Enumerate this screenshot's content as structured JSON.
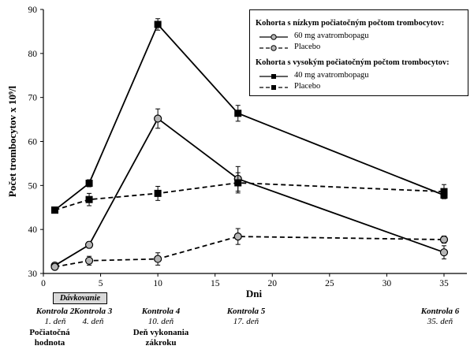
{
  "chart_data": {
    "type": "line",
    "ylabel": "Počet trombocytov x 10⁹/l",
    "xlabel": "Dni",
    "xlim": [
      0,
      37
    ],
    "ylim": [
      30,
      90
    ],
    "xticks": [
      0,
      5,
      10,
      15,
      20,
      25,
      30,
      35
    ],
    "yticks": [
      30,
      40,
      50,
      60,
      70,
      80,
      90
    ],
    "grid": false,
    "legend_position": "top-right",
    "legend_groups": [
      {
        "title": "Kohorta s nízkym počiatočným počtom trombocytov:",
        "entries": [
          "60 mg avatrombopagu",
          "Placebo"
        ]
      },
      {
        "title": "Kohorta s vysokým počiatočným počtom trombocytov:",
        "entries": [
          "40 mg avatrombopagu",
          "Placebo"
        ]
      }
    ],
    "series": [
      {
        "name": "60 mg avatrombopagu",
        "marker": "circle",
        "line": "solid",
        "x": [
          1,
          4,
          10,
          17,
          35
        ],
        "y": [
          31.8,
          36.5,
          65.2,
          51.5,
          34.8
        ],
        "err": [
          0.5,
          0.7,
          2.2,
          2.8,
          1.5
        ]
      },
      {
        "name": "Placebo",
        "marker": "circle",
        "line": "dashed",
        "x": [
          1,
          4,
          10,
          17,
          35
        ],
        "y": [
          31.5,
          32.9,
          33.3,
          38.4,
          37.7
        ],
        "err": [
          0.5,
          1.0,
          1.4,
          1.8,
          0.8
        ]
      },
      {
        "name": "40 mg avatrombopagu",
        "marker": "square",
        "line": "solid",
        "x": [
          1,
          4,
          10,
          17,
          35
        ],
        "y": [
          44.4,
          50.5,
          86.6,
          66.4,
          47.8
        ],
        "err": [
          0.5,
          0.8,
          1.3,
          1.8,
          0.8
        ]
      },
      {
        "name": "Placebo",
        "marker": "square",
        "line": "dashed",
        "x": [
          1,
          4,
          10,
          17,
          35
        ],
        "y": [
          44.4,
          46.8,
          48.2,
          50.6,
          48.6
        ],
        "err": [
          0.5,
          1.4,
          1.6,
          2.3,
          1.6
        ]
      }
    ]
  },
  "dosing_label": "Dávkovanie",
  "visits": [
    {
      "name": "Kontrola 2",
      "day": "1. deň",
      "note": "Počiatočná hodnota"
    },
    {
      "name": "Kontrola 3",
      "day": "4. deň",
      "note": ""
    },
    {
      "name": "Kontrola 4",
      "day": "10. deň",
      "note": "Deň vykonania zákroku"
    },
    {
      "name": "Kontrola 5",
      "day": "17. deň",
      "note": ""
    },
    {
      "name": "Kontrola 6",
      "day": "35. deň",
      "note": ""
    }
  ]
}
